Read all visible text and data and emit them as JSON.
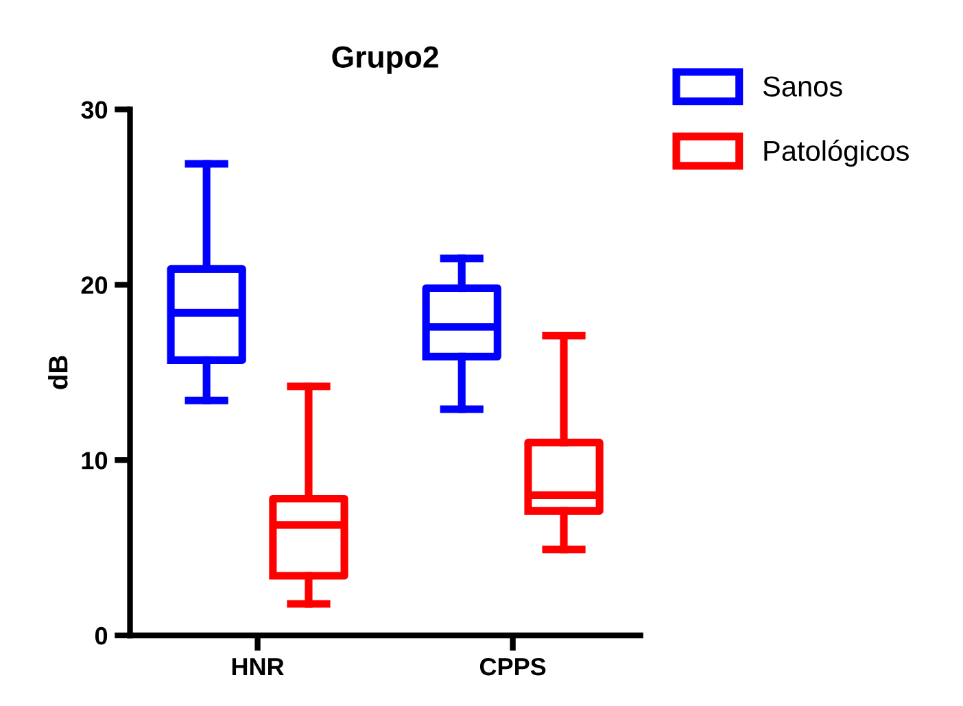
{
  "chart_data": {
    "type": "box",
    "title": "Grupo2",
    "ylabel": "dB",
    "categories": [
      "HNR",
      "CPPS"
    ],
    "ylim": [
      0,
      30
    ],
    "yticks": [
      0,
      10,
      20,
      30
    ],
    "grid": false,
    "legend": "top right",
    "series": [
      {
        "name": "Sanos",
        "color": "#0000ff",
        "boxes": [
          {
            "low": 13.4,
            "q1": 15.7,
            "median": 18.4,
            "q3": 20.9,
            "high": 26.9
          },
          {
            "low": 12.9,
            "q1": 15.9,
            "median": 17.6,
            "q3": 19.8,
            "high": 21.5
          }
        ]
      },
      {
        "name": "Patológicos",
        "color": "#ff0000",
        "boxes": [
          {
            "low": 1.8,
            "q1": 3.4,
            "median": 6.3,
            "q3": 7.8,
            "high": 14.2
          },
          {
            "low": 4.9,
            "q1": 7.1,
            "median": 8.0,
            "q3": 11.0,
            "high": 17.1
          }
        ]
      }
    ]
  }
}
